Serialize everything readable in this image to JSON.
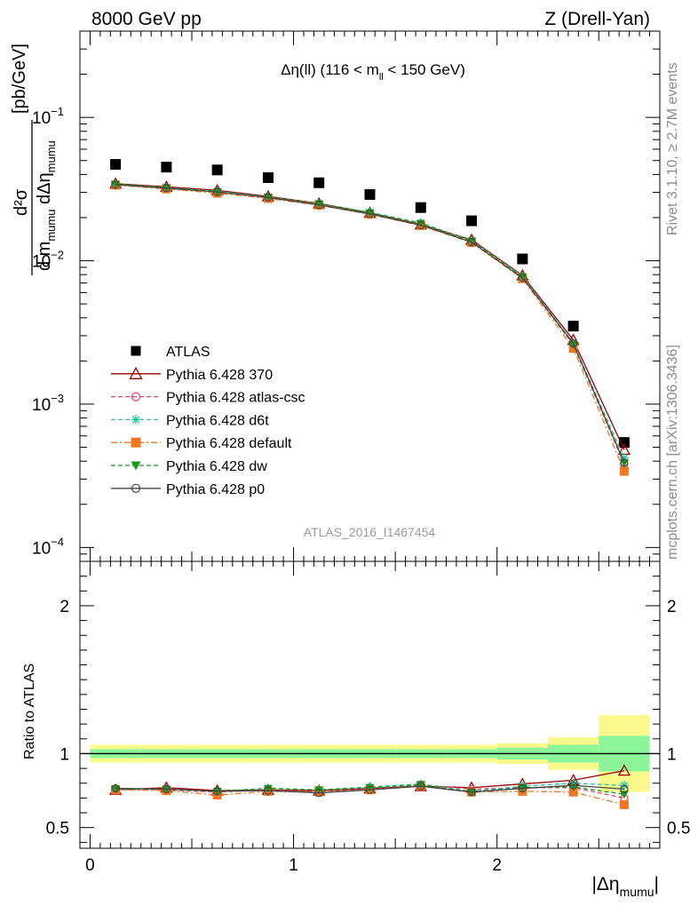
{
  "header": {
    "left": "8000 GeV pp",
    "right": "Z (Drell-Yan)"
  },
  "side_labels": {
    "rivet": "Rivet 3.1.10, ≥ 2.7M events",
    "mcplots": "mcplots.cern.ch [arXiv:1306.3436]"
  },
  "watermark": "ATLAS_2016_I1467454",
  "chart_data": [
    {
      "type": "scatter",
      "panel": "main",
      "title_parts": [
        "Δη(ll) (116 < m",
        "ll",
        " < 150 GeV)"
      ],
      "ylabel_parts": {
        "num": "d²σ",
        "den": "d m",
        "den_sub1": "mumu",
        "den_mid": " dΔη",
        "den_sub2": "mumu",
        "unit": "[pb/GeV]"
      },
      "yscale": "log",
      "ylim": [
        8e-05,
        0.4
      ],
      "xlim": [
        -0.05,
        2.8
      ],
      "ytick_labels": [
        {
          "base": "10",
          "exp": "−1",
          "value": 0.1
        },
        {
          "base": "10",
          "exp": "−2",
          "value": 0.01
        },
        {
          "base": "10",
          "exp": "−3",
          "value": 0.001
        },
        {
          "base": "10",
          "exp": "−4",
          "value": 0.0001
        }
      ],
      "x": [
        0.125,
        0.375,
        0.625,
        0.875,
        1.125,
        1.375,
        1.625,
        1.875,
        2.125,
        2.375,
        2.625
      ],
      "series": [
        {
          "name": "ATLAS",
          "color": "#000000",
          "marker": "square",
          "values": [
            0.047,
            0.045,
            0.043,
            0.038,
            0.035,
            0.029,
            0.0235,
            0.019,
            0.0103,
            0.0035,
            0.00054
          ]
        },
        {
          "name": "Pythia 6.428 370",
          "color": "#990000",
          "marker": "triangle-open",
          "line": "solid",
          "values": [
            0.0345,
            0.0328,
            0.031,
            0.0281,
            0.0251,
            0.0216,
            0.0179,
            0.014,
            0.0079,
            0.0028,
            0.00048
          ]
        },
        {
          "name": "Pythia 6.428 atlas-csc",
          "color": "#e8406a",
          "marker": "circle-open",
          "line": "dashed",
          "values": [
            0.034,
            0.032,
            0.0302,
            0.0275,
            0.0247,
            0.0213,
            0.0178,
            0.0136,
            0.0077,
            0.0026,
            0.00038
          ]
        },
        {
          "name": "Pythia 6.428 d6t",
          "color": "#20c8a0",
          "marker": "star",
          "line": "dashed",
          "values": [
            0.0343,
            0.0324,
            0.0305,
            0.0279,
            0.025,
            0.0218,
            0.0184,
            0.0138,
            0.0078,
            0.00265,
            0.00042
          ]
        },
        {
          "name": "Pythia 6.428 default",
          "color": "#f07820",
          "marker": "square",
          "line": "dashdot",
          "values": [
            0.0337,
            0.0317,
            0.0296,
            0.0272,
            0.0244,
            0.0211,
            0.0176,
            0.0134,
            0.0075,
            0.00245,
            0.00034
          ]
        },
        {
          "name": "Pythia 6.428 dw",
          "color": "#1a9a1a",
          "marker": "triangle-down",
          "line": "dashed",
          "values": [
            0.0342,
            0.0323,
            0.0303,
            0.0278,
            0.025,
            0.0216,
            0.0182,
            0.0137,
            0.0077,
            0.0026,
            0.00039
          ]
        },
        {
          "name": "Pythia 6.428 p0",
          "color": "#444444",
          "marker": "circle-open",
          "line": "solid",
          "values": [
            0.0339,
            0.0321,
            0.0302,
            0.0276,
            0.0245,
            0.0212,
            0.0177,
            0.0135,
            0.0076,
            0.00265,
            0.00039
          ]
        }
      ]
    },
    {
      "type": "line",
      "panel": "ratio",
      "ylabel": "Ratio to ATLAS",
      "xlabel_parts": [
        "|Δη",
        "mumu",
        "|"
      ],
      "ylim": [
        0.36,
        2.3
      ],
      "xlim": [
        -0.05,
        2.8
      ],
      "yticks": [
        0.5,
        1,
        2
      ],
      "ytick_labels": [
        "0.5",
        "1",
        "2"
      ],
      "xticks": [
        0,
        1,
        2
      ],
      "xtick_labels": [
        "0",
        "1",
        "2"
      ],
      "x": [
        0.125,
        0.375,
        0.625,
        0.875,
        1.125,
        1.375,
        1.625,
        1.875,
        2.125,
        2.375,
        2.625
      ],
      "bins": [
        [
          0,
          0.25
        ],
        [
          0.25,
          0.5
        ],
        [
          0.5,
          0.75
        ],
        [
          0.75,
          1.0
        ],
        [
          1.0,
          1.25
        ],
        [
          1.25,
          1.5
        ],
        [
          1.5,
          1.75
        ],
        [
          1.75,
          2.0
        ],
        [
          2.0,
          2.25
        ],
        [
          2.25,
          2.5
        ],
        [
          2.5,
          2.75
        ]
      ],
      "band_inner": [
        0.03,
        0.03,
        0.03,
        0.03,
        0.03,
        0.03,
        0.03,
        0.03,
        0.04,
        0.06,
        0.12
      ],
      "band_outer": [
        0.06,
        0.06,
        0.06,
        0.06,
        0.06,
        0.06,
        0.06,
        0.06,
        0.07,
        0.11,
        0.26
      ],
      "series": [
        {
          "name": "Pythia 6.428 370",
          "color": "#990000",
          "marker": "triangle-open",
          "line": "solid",
          "values": [
            0.755,
            0.77,
            0.75,
            0.755,
            0.75,
            0.765,
            0.78,
            0.77,
            0.795,
            0.82,
            0.885
          ]
        },
        {
          "name": "Pythia 6.428 atlas-csc",
          "color": "#e8406a",
          "marker": "circle-open",
          "line": "dashed",
          "values": [
            0.76,
            0.755,
            0.74,
            0.755,
            0.74,
            0.76,
            0.79,
            0.76,
            0.77,
            0.77,
            0.7
          ]
        },
        {
          "name": "Pythia 6.428 d6t",
          "color": "#20c8a0",
          "marker": "star",
          "line": "dashed",
          "values": [
            0.76,
            0.76,
            0.745,
            0.765,
            0.755,
            0.775,
            0.795,
            0.745,
            0.78,
            0.8,
            0.785
          ]
        },
        {
          "name": "Pythia 6.428 default",
          "color": "#f07820",
          "marker": "square",
          "line": "dashdot",
          "values": [
            0.755,
            0.75,
            0.72,
            0.745,
            0.74,
            0.755,
            0.78,
            0.74,
            0.745,
            0.74,
            0.655
          ]
        },
        {
          "name": "Pythia 6.428 dw",
          "color": "#1a9a1a",
          "marker": "triangle-down",
          "line": "dashed",
          "values": [
            0.76,
            0.76,
            0.745,
            0.765,
            0.755,
            0.77,
            0.79,
            0.74,
            0.77,
            0.775,
            0.725
          ]
        },
        {
          "name": "Pythia 6.428 p0",
          "color": "#444444",
          "marker": "circle-open",
          "line": "solid",
          "values": [
            0.765,
            0.76,
            0.745,
            0.75,
            0.735,
            0.755,
            0.78,
            0.74,
            0.765,
            0.785,
            0.76
          ]
        }
      ]
    }
  ]
}
